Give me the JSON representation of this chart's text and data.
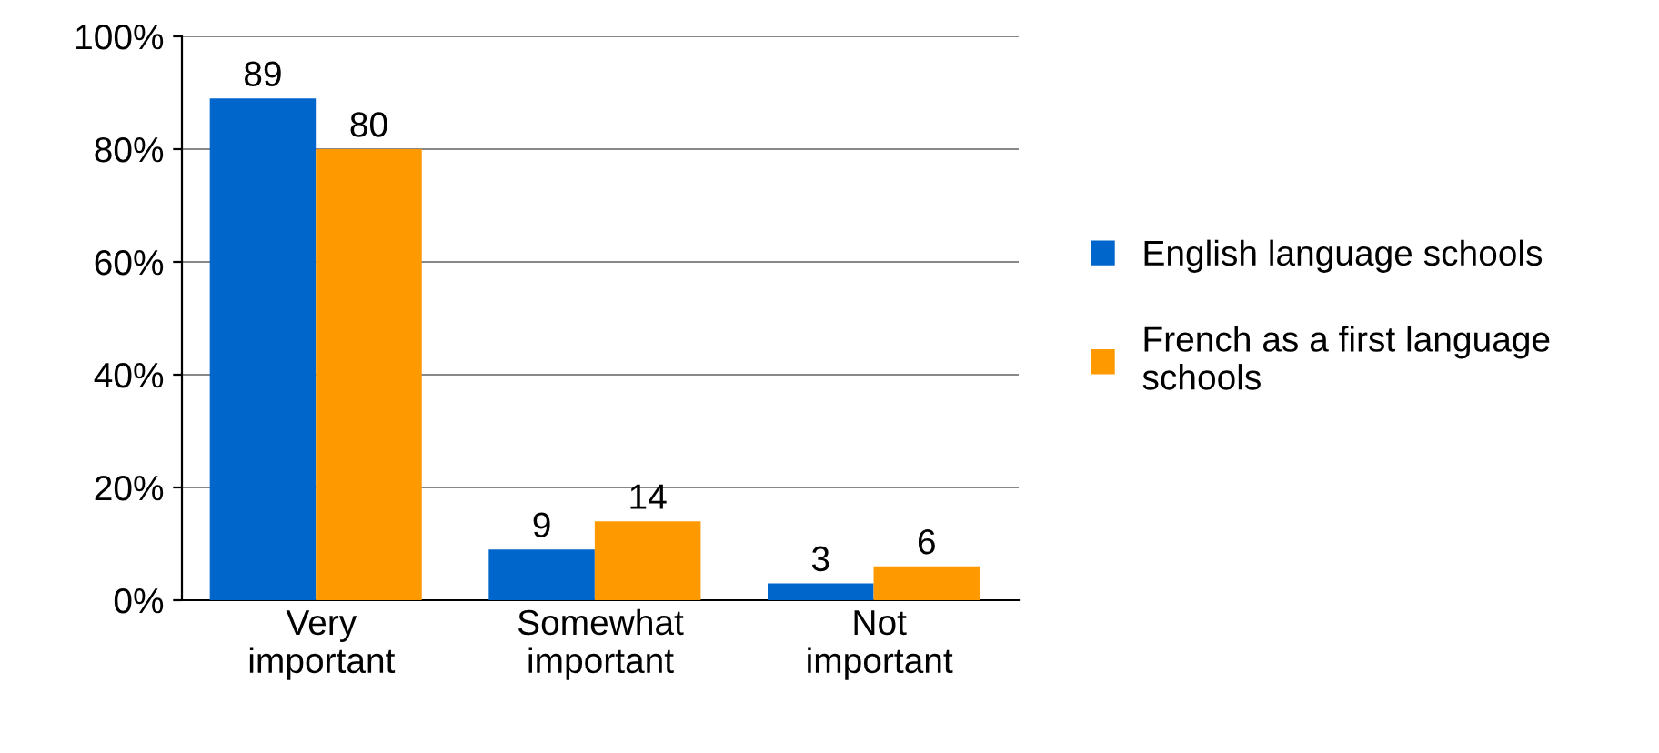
{
  "chart_data": {
    "type": "bar",
    "categories": [
      "Very important",
      "Somewhat important",
      "Not important"
    ],
    "series": [
      {
        "name": "English language schools",
        "color": "#0066cc",
        "values": [
          89,
          9,
          3
        ]
      },
      {
        "name": "French as a first language schools",
        "color": "#ff9900",
        "values": [
          80,
          14,
          6
        ]
      }
    ],
    "ylim": [
      0,
      100
    ],
    "yticks": [
      {
        "value": 0,
        "label": "0%"
      },
      {
        "value": 20,
        "label": "20%"
      },
      {
        "value": 40,
        "label": "40%"
      },
      {
        "value": 60,
        "label": "60%"
      },
      {
        "value": 80,
        "label": "80%"
      },
      {
        "value": 100,
        "label": "100%"
      }
    ],
    "grid": "y",
    "legend": "right",
    "data_labels": true
  }
}
